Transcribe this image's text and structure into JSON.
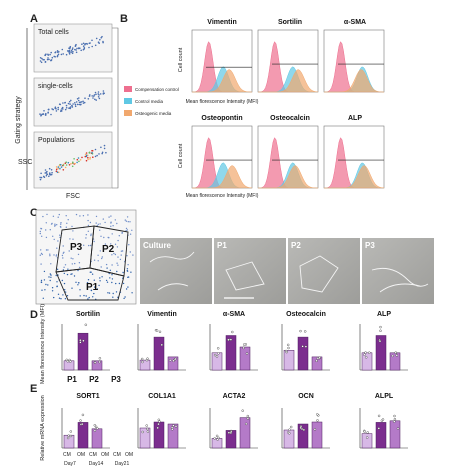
{
  "panel_letters": [
    "A",
    "B",
    "C",
    "D",
    "E"
  ],
  "panelA": {
    "gating_label": "Gating strategy",
    "boxes": [
      "Total cells",
      "single-cells",
      "Populations"
    ],
    "axis_y": "SSC",
    "axis_x": "FSC"
  },
  "panelB": {
    "legend": [
      "Compensation control",
      "Control media",
      "Osteogenic media"
    ],
    "colors": {
      "compensation": "#ee6f8f",
      "control": "#5fc8e4",
      "osteogenic": "#f1a86e"
    },
    "row1": [
      "Vimentin",
      "Sortilin",
      "α-SMA"
    ],
    "row2": [
      "Osteopontin",
      "Osteocalcin",
      "ALP"
    ],
    "ylabel": "Cell count",
    "xlabel": "Mean florescence Intensity (MFI)"
  },
  "panelC": {
    "gates": [
      "P1",
      "P2",
      "P3"
    ],
    "micrographs": [
      "Culture",
      "P1",
      "P2",
      "P3"
    ]
  },
  "panelD": {
    "titles": [
      "Sortilin",
      "Vimentin",
      "α-SMA",
      "Osteocalcin",
      "ALP"
    ],
    "ylabel": "Mean florescence Intensity (MFI)",
    "groups": [
      "P1",
      "P2",
      "P3"
    ]
  },
  "panelE": {
    "titles": [
      "SORT1",
      "COL1A1",
      "ACTA2",
      "OCN",
      "ALPL"
    ],
    "ylabel": "Relative mRNA expression",
    "conditions": [
      "CM",
      "OM"
    ],
    "days": [
      "Day7",
      "Day14",
      "Day21"
    ]
  },
  "chart_data": [
    {
      "type": "bar",
      "panel": "D",
      "categories": [
        "P1",
        "P2",
        "P3"
      ],
      "series": [
        {
          "name": "Sortilin",
          "values": [
            3,
            12,
            3
          ]
        },
        {
          "name": "Vimentin",
          "values": [
            1.5,
            5,
            2
          ]
        },
        {
          "name": "α-SMA",
          "values": [
            1.5,
            3,
            2
          ]
        },
        {
          "name": "Osteocalcin",
          "values": [
            3,
            5,
            2
          ]
        },
        {
          "name": "ALP",
          "values": [
            1.5,
            3,
            1.5
          ]
        }
      ],
      "ylabel": "Mean florescence Intensity (MFI)"
    },
    {
      "type": "bar",
      "panel": "E",
      "categories": [
        "Day7",
        "Day14",
        "Day21"
      ],
      "series": [
        {
          "name": "SORT1",
          "values": [
            0.8,
            1.6,
            1.2
          ]
        },
        {
          "name": "COL1A1",
          "values": [
            1.0,
            1.3,
            1.2
          ]
        },
        {
          "name": "ACTA2",
          "values": [
            0.6,
            1.1,
            1.9
          ]
        },
        {
          "name": "OCN",
          "values": [
            0.9,
            1.2,
            1.3
          ]
        },
        {
          "name": "ALPL",
          "values": [
            0.9,
            1.6,
            1.7
          ]
        }
      ],
      "ylabel": "Relative mRNA expression"
    }
  ]
}
